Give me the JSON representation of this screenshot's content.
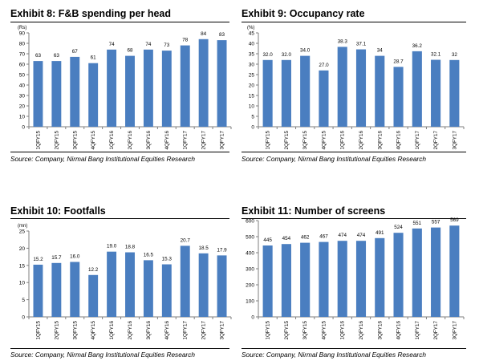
{
  "charts": [
    {
      "title": "Exhibit 8: F&B spending per head",
      "source": "Source: Company, Nirmal Bang Institutional Equities Research",
      "chart_data": {
        "type": "bar",
        "unit": "(Rs)",
        "categories": [
          "1QFY15",
          "2QFY15",
          "3QFY15",
          "4QFY15",
          "1QFY16",
          "2QFY16",
          "3QFY16",
          "4QFY16",
          "1QFY17",
          "2QFY17",
          "3QFY17"
        ],
        "values": [
          63,
          63,
          67,
          61,
          74,
          68,
          74,
          73,
          78,
          84,
          83
        ],
        "labels": [
          "63",
          "63",
          "67",
          "61",
          "74",
          "68",
          "74",
          "73",
          "78",
          "84",
          "83"
        ],
        "yticks": [
          "0",
          "10",
          "20",
          "30",
          "40",
          "50",
          "60",
          "70",
          "80",
          "90"
        ],
        "ylim": [
          0,
          90
        ],
        "color": "#4a7ec0"
      }
    },
    {
      "title": "Exhibit 9: Occupancy rate",
      "source": "Source: Company, Nirmal Bang Institutional Equities Research",
      "chart_data": {
        "type": "bar",
        "unit": "(%)",
        "categories": [
          "1QFY15",
          "2QFY15",
          "3QFY15",
          "4QFY15",
          "1QFY16",
          "2QFY16",
          "3QFY16",
          "4QFY16",
          "1QFY17",
          "2QFY17",
          "3QFY17"
        ],
        "values": [
          32.0,
          32.0,
          34.0,
          27.0,
          38.3,
          37.1,
          34,
          28.7,
          36.2,
          32.1,
          32
        ],
        "labels": [
          "32.0",
          "32.0",
          "34.0",
          "27.0",
          "38.3",
          "37.1",
          "34",
          "28.7",
          "36.2",
          "32.1",
          "32"
        ],
        "yticks": [
          "0",
          "5",
          "10",
          "15",
          "20",
          "25",
          "30",
          "35",
          "40",
          "45"
        ],
        "ylim": [
          0,
          45
        ],
        "color": "#4a7ec0"
      }
    },
    {
      "title": "Exhibit 10: Footfalls",
      "source": "Source: Company, Nirmal Bang Institutional Equities Research",
      "chart_data": {
        "type": "bar",
        "unit": "(mn)",
        "categories": [
          "1QFY15",
          "2QFY15",
          "3QFY15",
          "4QFY15",
          "1QFY16",
          "2QFY16",
          "3QFY16",
          "4QFY16",
          "1QFY17",
          "2QFY17",
          "3QFY17"
        ],
        "values": [
          15.2,
          15.7,
          16.0,
          12.2,
          19.0,
          18.8,
          16.5,
          15.3,
          20.7,
          18.5,
          17.9
        ],
        "labels": [
          "15.2",
          "15.7",
          "16.0",
          "12.2",
          "19.0",
          "18.8",
          "16.5",
          "15.3",
          "20.7",
          "18.5",
          "17.9"
        ],
        "yticks": [
          "0",
          "5",
          "10",
          "15",
          "20",
          "25"
        ],
        "ylim": [
          0,
          25
        ],
        "color": "#4a7ec0"
      }
    },
    {
      "title": "Exhibit 11: Number of screens",
      "source": "Source: Company, Nirmal Bang Institutional Equities Research",
      "chart_data": {
        "type": "bar",
        "unit": "",
        "categories": [
          "1QFY15",
          "2QFY15",
          "3QFY15",
          "4QFY15",
          "1QFY16",
          "2QFY16",
          "3QFY16",
          "4QFY16",
          "1QFY17",
          "2QFY17",
          "3QFY17"
        ],
        "values": [
          445,
          454,
          462,
          467,
          474,
          474,
          491,
          524,
          551,
          557,
          569
        ],
        "labels": [
          "445",
          "454",
          "462",
          "467",
          "474",
          "474",
          "491",
          "524",
          "551",
          "557",
          "569"
        ],
        "yticks": [
          "0",
          "100",
          "200",
          "300",
          "400",
          "500",
          "600"
        ],
        "ylim": [
          0,
          600
        ],
        "color": "#4a7ec0"
      }
    }
  ]
}
